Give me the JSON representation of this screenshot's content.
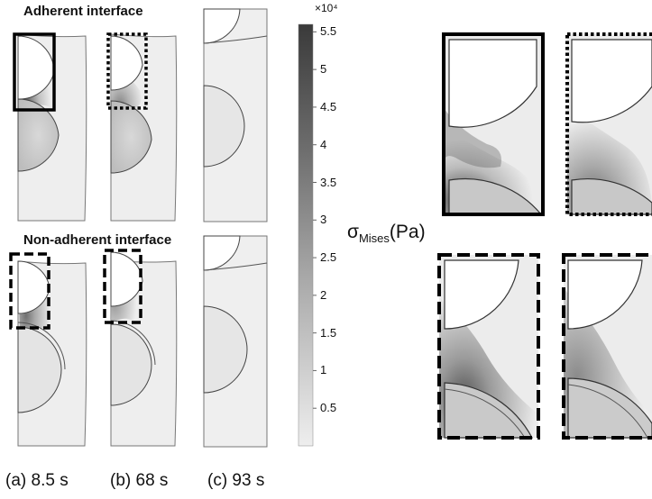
{
  "sections": {
    "adherent_title": "Adherent interface",
    "non_adherent_title": "Non-adherent interface"
  },
  "time_labels": [
    "(a) 8.5 s",
    "(b) 68 s",
    "(c) 93 s"
  ],
  "colorbar": {
    "exponent_label": "×10⁴",
    "ticks": [
      "5.5",
      "5",
      "4.5",
      "4",
      "3.5",
      "3",
      "2.5",
      "2",
      "1.5",
      "1",
      "0.5"
    ],
    "tick_values": [
      5.5,
      5,
      4.5,
      4,
      3.5,
      3,
      2.5,
      2,
      1.5,
      1,
      0.5
    ],
    "range": [
      0,
      5.6
    ],
    "gradient_dark": "#3a3a3a",
    "gradient_light": "#eeeeee"
  },
  "sigma_label": {
    "symbol": "σ",
    "subscript": "Mises",
    "unit": "(Pa)"
  },
  "colors": {
    "panel_fill": "#efefef",
    "outline": "#555555",
    "frame": "#000000"
  }
}
